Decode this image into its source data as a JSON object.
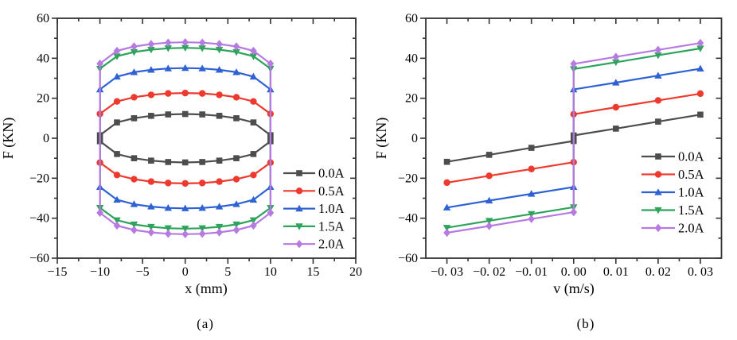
{
  "figure": {
    "background": "#ffffff",
    "axis_color": "#333333",
    "text_color": "#000000"
  },
  "chart_data": [
    {
      "id": "a",
      "type": "line",
      "subtype": "hysteresis-loops",
      "caption": "(a)",
      "xlabel": "x (mm)",
      "ylabel": "F (KN)",
      "xlim": [
        -15,
        20
      ],
      "ylim": [
        -60,
        60
      ],
      "grid": false,
      "legend_position": "right-middle-inside",
      "xticks": [
        {
          "v": -15,
          "t": "−15"
        },
        {
          "v": -10,
          "t": "−10"
        },
        {
          "v": -5,
          "t": "−5"
        },
        {
          "v": 0,
          "t": "0"
        },
        {
          "v": 5,
          "t": "5"
        },
        {
          "v": 10,
          "t": "10"
        },
        {
          "v": 15,
          "t": "15"
        },
        {
          "v": 20,
          "t": "20"
        }
      ],
      "yticks": [
        {
          "v": 60,
          "t": "60"
        },
        {
          "v": 40,
          "t": "40"
        },
        {
          "v": 20,
          "t": "20"
        },
        {
          "v": 0,
          "t": "0"
        },
        {
          "v": -20,
          "t": "−20"
        },
        {
          "v": -40,
          "t": "−40"
        },
        {
          "v": -60,
          "t": "−60"
        }
      ],
      "minor_xticks": [
        -12.5,
        -7.5,
        -2.5,
        2.5,
        7.5,
        12.5,
        17.5
      ],
      "minor_yticks": [
        -50,
        -30,
        -10,
        10,
        30,
        50
      ],
      "series": [
        {
          "name": "0.0A",
          "color": "#4d4d4d",
          "marker": "square",
          "kind": "loop",
          "upper": [
            [
              -10,
              1.5
            ],
            [
              -8,
              7.9
            ],
            [
              -6,
              10.0
            ],
            [
              -4,
              11.2
            ],
            [
              -2,
              11.9
            ],
            [
              0,
              12.1
            ],
            [
              2,
              11.9
            ],
            [
              4,
              11.2
            ],
            [
              6,
              10.0
            ],
            [
              8,
              7.9
            ],
            [
              10,
              1.5
            ]
          ],
          "lower": [
            [
              -10,
              -1.5
            ],
            [
              -8,
              -7.9
            ],
            [
              -6,
              -10.0
            ],
            [
              -4,
              -11.2
            ],
            [
              -2,
              -11.9
            ],
            [
              0,
              -12.1
            ],
            [
              2,
              -11.9
            ],
            [
              4,
              -11.2
            ],
            [
              6,
              -10.0
            ],
            [
              8,
              -7.9
            ],
            [
              10,
              -1.5
            ]
          ]
        },
        {
          "name": "0.5A",
          "color": "#ee3a2e",
          "marker": "circle",
          "kind": "loop",
          "upper": [
            [
              -10,
              12.2
            ],
            [
              -8,
              18.4
            ],
            [
              -6,
              20.5
            ],
            [
              -4,
              21.7
            ],
            [
              -2,
              22.4
            ],
            [
              0,
              22.6
            ],
            [
              2,
              22.4
            ],
            [
              4,
              21.7
            ],
            [
              6,
              20.5
            ],
            [
              8,
              18.4
            ],
            [
              10,
              12.2
            ]
          ],
          "lower": [
            [
              -10,
              -12.2
            ],
            [
              -8,
              -18.4
            ],
            [
              -6,
              -20.5
            ],
            [
              -4,
              -21.7
            ],
            [
              -2,
              -22.4
            ],
            [
              0,
              -22.6
            ],
            [
              2,
              -22.4
            ],
            [
              4,
              -21.7
            ],
            [
              6,
              -20.5
            ],
            [
              8,
              -18.4
            ],
            [
              10,
              -12.2
            ]
          ]
        },
        {
          "name": "1.0A",
          "color": "#2e62d4",
          "marker": "triangle-up",
          "kind": "loop",
          "upper": [
            [
              -10,
              24.4
            ],
            [
              -8,
              30.8
            ],
            [
              -6,
              33.0
            ],
            [
              -4,
              34.2
            ],
            [
              -2,
              34.9
            ],
            [
              0,
              35.1
            ],
            [
              2,
              34.9
            ],
            [
              4,
              34.2
            ],
            [
              6,
              33.0
            ],
            [
              8,
              30.8
            ],
            [
              10,
              24.4
            ]
          ],
          "lower": [
            [
              -10,
              -24.4
            ],
            [
              -8,
              -30.8
            ],
            [
              -6,
              -33.0
            ],
            [
              -4,
              -34.2
            ],
            [
              -2,
              -34.9
            ],
            [
              0,
              -35.1
            ],
            [
              2,
              -34.9
            ],
            [
              4,
              -34.2
            ],
            [
              6,
              -33.0
            ],
            [
              8,
              -30.8
            ],
            [
              10,
              -24.4
            ]
          ]
        },
        {
          "name": "1.5A",
          "color": "#2da35c",
          "marker": "triangle-down",
          "kind": "loop",
          "upper": [
            [
              -10,
              34.8
            ],
            [
              -8,
              41.0
            ],
            [
              -6,
              43.1
            ],
            [
              -4,
              44.3
            ],
            [
              -2,
              45.0
            ],
            [
              0,
              45.2
            ],
            [
              2,
              45.0
            ],
            [
              4,
              44.3
            ],
            [
              6,
              43.1
            ],
            [
              8,
              41.0
            ],
            [
              10,
              34.8
            ]
          ],
          "lower": [
            [
              -10,
              -34.8
            ],
            [
              -8,
              -41.0
            ],
            [
              -6,
              -43.1
            ],
            [
              -4,
              -44.3
            ],
            [
              -2,
              -45.0
            ],
            [
              0,
              -45.2
            ],
            [
              2,
              -45.0
            ],
            [
              4,
              -44.3
            ],
            [
              6,
              -43.1
            ],
            [
              8,
              -41.0
            ],
            [
              10,
              -34.8
            ]
          ]
        },
        {
          "name": "2.0A",
          "color": "#b77ae0",
          "marker": "diamond",
          "kind": "loop",
          "upper": [
            [
              -10,
              37.3
            ],
            [
              -8,
              43.7
            ],
            [
              -6,
              45.9
            ],
            [
              -4,
              47.1
            ],
            [
              -2,
              47.8
            ],
            [
              0,
              48.0
            ],
            [
              2,
              47.8
            ],
            [
              4,
              47.1
            ],
            [
              6,
              45.9
            ],
            [
              8,
              43.7
            ],
            [
              10,
              37.3
            ]
          ],
          "lower": [
            [
              -10,
              -37.3
            ],
            [
              -8,
              -43.7
            ],
            [
              -6,
              -45.9
            ],
            [
              -4,
              -47.1
            ],
            [
              -2,
              -47.8
            ],
            [
              0,
              -48.0
            ],
            [
              2,
              -47.8
            ],
            [
              4,
              -47.1
            ],
            [
              6,
              -45.9
            ],
            [
              8,
              -43.7
            ],
            [
              10,
              -37.3
            ]
          ]
        }
      ]
    },
    {
      "id": "b",
      "type": "line",
      "subtype": "force-velocity",
      "caption": "(b)",
      "xlabel": "v (m/s)",
      "ylabel": "F (KN)",
      "xlim": [
        -0.035,
        0.035
      ],
      "ylim": [
        -60,
        60
      ],
      "grid": false,
      "legend_position": "right-lower-inside",
      "xticks": [
        {
          "v": -0.03,
          "t": "−0. 03"
        },
        {
          "v": -0.02,
          "t": "−0. 02"
        },
        {
          "v": -0.01,
          "t": "−0. 01"
        },
        {
          "v": 0,
          "t": "0. 00"
        },
        {
          "v": 0.01,
          "t": "0. 01"
        },
        {
          "v": 0.02,
          "t": "0. 02"
        },
        {
          "v": 0.03,
          "t": "0. 03"
        }
      ],
      "yticks": [
        {
          "v": 60,
          "t": "60"
        },
        {
          "v": 40,
          "t": "40"
        },
        {
          "v": 20,
          "t": "20"
        },
        {
          "v": 0,
          "t": "0"
        },
        {
          "v": -20,
          "t": "−20"
        },
        {
          "v": -40,
          "t": "−40"
        },
        {
          "v": -60,
          "t": "−60"
        }
      ],
      "minor_xticks": [
        -0.025,
        -0.015,
        -0.005,
        0.005,
        0.015,
        0.025
      ],
      "minor_yticks": [
        -50,
        -30,
        -10,
        10,
        30,
        50
      ],
      "series": [
        {
          "name": "0.0A",
          "color": "#4d4d4d",
          "marker": "square",
          "kind": "line",
          "points": [
            [
              -0.03,
              -11.8
            ],
            [
              -0.02,
              -8.3
            ],
            [
              -0.01,
              -4.8
            ],
            [
              0,
              -1.4
            ],
            [
              0,
              1.4
            ],
            [
              0.01,
              4.8
            ],
            [
              0.02,
              8.3
            ],
            [
              0.03,
              11.8
            ]
          ]
        },
        {
          "name": "0.5A",
          "color": "#ee3a2e",
          "marker": "circle",
          "kind": "line",
          "points": [
            [
              -0.03,
              -22.2
            ],
            [
              -0.02,
              -18.8
            ],
            [
              -0.01,
              -15.4
            ],
            [
              0,
              -12.0
            ],
            [
              0,
              12.0
            ],
            [
              0.01,
              15.5
            ],
            [
              0.02,
              18.9
            ],
            [
              0.03,
              22.3
            ]
          ]
        },
        {
          "name": "1.0A",
          "color": "#2e62d4",
          "marker": "triangle-up",
          "kind": "line",
          "points": [
            [
              -0.03,
              -34.7
            ],
            [
              -0.02,
              -31.2
            ],
            [
              -0.01,
              -27.8
            ],
            [
              0,
              -24.4
            ],
            [
              0,
              24.4
            ],
            [
              0.01,
              27.8
            ],
            [
              0.02,
              31.3
            ],
            [
              0.03,
              34.8
            ]
          ]
        },
        {
          "name": "1.5A",
          "color": "#2da35c",
          "marker": "triangle-down",
          "kind": "line",
          "points": [
            [
              -0.03,
              -44.8
            ],
            [
              -0.02,
              -41.3
            ],
            [
              -0.01,
              -37.9
            ],
            [
              0,
              -34.5
            ],
            [
              0,
              34.6
            ],
            [
              0.01,
              38.0
            ],
            [
              0.02,
              41.5
            ],
            [
              0.03,
              44.9
            ]
          ]
        },
        {
          "name": "2.0A",
          "color": "#b77ae0",
          "marker": "diamond",
          "kind": "line",
          "points": [
            [
              -0.03,
              -47.3
            ],
            [
              -0.02,
              -43.9
            ],
            [
              -0.01,
              -40.4
            ],
            [
              0,
              -37.0
            ],
            [
              0,
              37.2
            ],
            [
              0.01,
              40.7
            ],
            [
              0.02,
              44.2
            ],
            [
              0.03,
              47.6
            ]
          ]
        }
      ]
    }
  ]
}
